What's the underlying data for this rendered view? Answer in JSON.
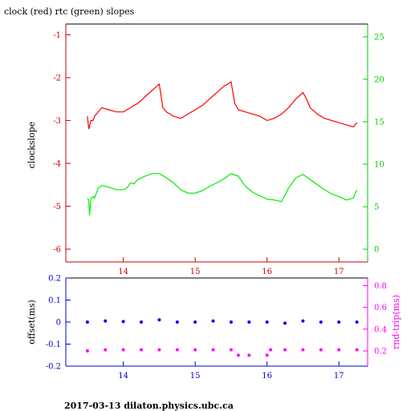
{
  "title": "clock (red) rtc (green) slopes",
  "footer": "2017-03-13  dilaton.physics.ubc.ca",
  "colors": {
    "clock": "#ff0000",
    "rtc": "#00ee00",
    "offset": "#0000ff",
    "roundtrip": "#ff00ff",
    "frame": "#000000"
  },
  "chart_data": [
    {
      "type": "line",
      "panel": "top",
      "ylabel": "clockslope",
      "ylabel_right": "",
      "xlim": [
        13.2,
        17.4
      ],
      "x_ticks": [
        14,
        15,
        16,
        17
      ],
      "ylim": [
        -6.3,
        -0.75
      ],
      "y_ticks": [
        -6,
        -5,
        -4,
        -3,
        -2,
        -1
      ],
      "y2lim": [
        -1.5,
        26.5
      ],
      "y2_ticks": [
        0,
        5,
        10,
        15,
        20,
        25
      ],
      "series": [
        {
          "axis": "left",
          "color": "#ff0000",
          "x": [
            13.5,
            13.52,
            13.55,
            13.58,
            13.6,
            13.7,
            13.8,
            13.9,
            14.0,
            14.1,
            14.2,
            14.3,
            14.4,
            14.5,
            14.55,
            14.6,
            14.7,
            14.8,
            14.9,
            15.0,
            15.1,
            15.2,
            15.3,
            15.4,
            15.5,
            15.55,
            15.6,
            15.7,
            15.8,
            15.9,
            16.0,
            16.1,
            16.2,
            16.3,
            16.4,
            16.5,
            16.55,
            16.6,
            16.7,
            16.8,
            16.9,
            17.0,
            17.1,
            17.2,
            17.25
          ],
          "y": [
            -2.9,
            -3.2,
            -3.0,
            -3.0,
            -2.9,
            -2.7,
            -2.75,
            -2.8,
            -2.8,
            -2.7,
            -2.6,
            -2.45,
            -2.3,
            -2.15,
            -2.7,
            -2.8,
            -2.9,
            -2.95,
            -2.85,
            -2.75,
            -2.65,
            -2.5,
            -2.35,
            -2.2,
            -2.1,
            -2.6,
            -2.75,
            -2.8,
            -2.85,
            -2.9,
            -3.0,
            -2.95,
            -2.85,
            -2.7,
            -2.5,
            -2.35,
            -2.5,
            -2.7,
            -2.85,
            -2.95,
            -3.0,
            -3.05,
            -3.1,
            -3.15,
            -3.05
          ]
        },
        {
          "axis": "right",
          "color": "#00ee00",
          "x": [
            13.5,
            13.52,
            13.53,
            13.55,
            13.58,
            13.6,
            13.65,
            13.7,
            13.8,
            13.9,
            14.0,
            14.05,
            14.1,
            14.15,
            14.2,
            14.3,
            14.4,
            14.5,
            14.6,
            14.7,
            14.8,
            14.9,
            15.0,
            15.1,
            15.2,
            15.3,
            15.4,
            15.5,
            15.6,
            15.7,
            15.8,
            15.9,
            16.0,
            16.1,
            16.2,
            16.3,
            16.4,
            16.5,
            16.6,
            16.7,
            16.8,
            16.9,
            17.0,
            17.1,
            17.2,
            17.25
          ],
          "y": [
            6.0,
            5.8,
            4.0,
            6.0,
            6.2,
            6.0,
            7.2,
            7.5,
            7.3,
            7.0,
            7.0,
            7.2,
            7.8,
            7.7,
            8.2,
            8.6,
            8.9,
            8.9,
            8.4,
            7.8,
            7.0,
            6.6,
            6.6,
            6.9,
            7.4,
            7.8,
            8.3,
            8.9,
            8.6,
            7.4,
            6.7,
            6.3,
            5.9,
            5.8,
            5.6,
            7.2,
            8.4,
            8.8,
            8.2,
            7.6,
            7.0,
            6.5,
            6.2,
            5.8,
            6.0,
            7.0
          ]
        }
      ]
    },
    {
      "type": "scatter",
      "panel": "bottom",
      "ylabel": "offset(ms)",
      "ylabel_right": "rnd-trip(ms)",
      "xlim": [
        13.2,
        17.4
      ],
      "x_ticks": [
        14,
        15,
        16,
        17
      ],
      "ylim": [
        -0.2,
        0.2
      ],
      "y_ticks": [
        -0.2,
        -0.1,
        0,
        0.1,
        0.2
      ],
      "y2lim": [
        0.06,
        0.87
      ],
      "y2_ticks": [
        0.2,
        0.4,
        0.6,
        0.8
      ],
      "series": [
        {
          "axis": "left",
          "color": "#0000ff",
          "x": [
            13.5,
            13.75,
            14.0,
            14.25,
            14.5,
            14.75,
            15.0,
            15.25,
            15.5,
            15.75,
            16.0,
            16.25,
            16.5,
            16.75,
            17.0,
            17.25
          ],
          "y": [
            0.0,
            0.005,
            0.002,
            0.0,
            0.01,
            0.0,
            0.0,
            0.005,
            0.0,
            0.0,
            0.0,
            -0.005,
            0.005,
            0.0,
            0.0,
            0.0
          ]
        },
        {
          "axis": "right",
          "color": "#ff00ff",
          "x": [
            13.5,
            13.75,
            14.0,
            14.25,
            14.5,
            14.75,
            15.0,
            15.25,
            15.5,
            15.6,
            15.75,
            16.0,
            16.05,
            16.25,
            16.5,
            16.75,
            17.0,
            17.25
          ],
          "y": [
            0.2,
            0.21,
            0.21,
            0.21,
            0.21,
            0.21,
            0.21,
            0.21,
            0.21,
            0.16,
            0.16,
            0.16,
            0.21,
            0.21,
            0.21,
            0.21,
            0.21,
            0.21
          ]
        }
      ]
    }
  ]
}
